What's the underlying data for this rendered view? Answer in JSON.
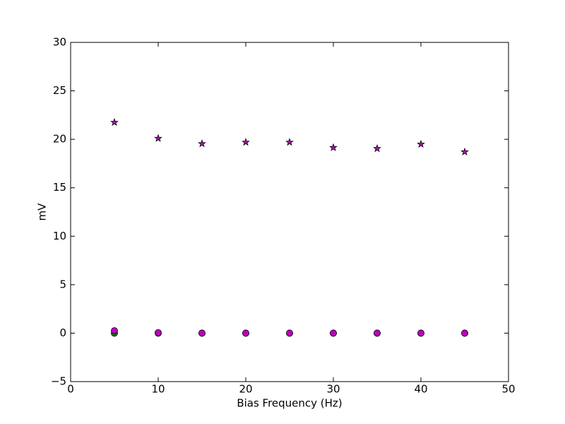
{
  "chart_data": {
    "type": "scatter",
    "x_label": "Bias Frequency (Hz)",
    "y_label": "mV",
    "xlim": [
      0,
      50
    ],
    "xticks": [
      0,
      10,
      20,
      30,
      40,
      50
    ],
    "ylim": [
      -5,
      30
    ],
    "yticks": [
      {
        "value": -5,
        "label": "−5"
      },
      0,
      5,
      10,
      15,
      20,
      25,
      30
    ],
    "grid": false,
    "series": [
      {
        "color": "#008000",
        "marker": "circle",
        "x": [
          5,
          10,
          15,
          20,
          25,
          30,
          35,
          40,
          45
        ],
        "values": [
          0,
          0,
          0,
          0,
          0,
          0,
          0,
          0,
          0
        ]
      },
      {
        "color": "#bf00bf",
        "marker": "circle",
        "x": [
          5,
          10,
          15,
          20,
          25,
          30,
          35,
          40,
          45
        ],
        "values": [
          0.25,
          0.05,
          0,
          0,
          0,
          0,
          0,
          0,
          0
        ]
      },
      {
        "color": "#bf00bf",
        "marker": "star",
        "x": [
          5,
          10,
          15,
          20,
          25,
          30,
          35,
          40,
          45
        ],
        "values": [
          21.75,
          20.1,
          19.55,
          19.7,
          19.7,
          19.15,
          19.05,
          19.5,
          18.7
        ]
      }
    ]
  }
}
